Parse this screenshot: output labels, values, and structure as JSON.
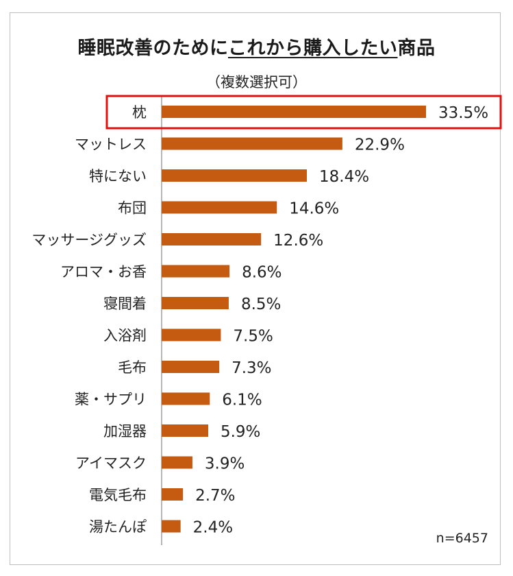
{
  "title_main": "睡眠改善のために",
  "title_underlined": "これから購入したい",
  "title_tail": "商品",
  "subtitle": "（複数選択可）",
  "note": "n=6457",
  "colors": {
    "bar": "#c55a11",
    "highlight": "#e01010",
    "axis": "#9e9e9e"
  },
  "chart_data": {
    "type": "bar",
    "orientation": "horizontal",
    "categories": [
      "枕",
      "マットレス",
      "特にない",
      "布団",
      "マッサージグッズ",
      "アロマ・お香",
      "寝間着",
      "入浴剤",
      "毛布",
      "薬・サプリ",
      "加湿器",
      "アイマスク",
      "電気毛布",
      "湯たんぽ"
    ],
    "values": [
      33.5,
      22.9,
      18.4,
      14.6,
      12.6,
      8.6,
      8.5,
      7.5,
      7.3,
      6.1,
      5.9,
      3.9,
      2.7,
      2.4
    ],
    "value_labels": [
      "33.5%",
      "22.9%",
      "18.4%",
      "14.6%",
      "12.6%",
      "8.6%",
      "8.5%",
      "7.5%",
      "7.3%",
      "6.1%",
      "5.9%",
      "3.9%",
      "2.7%",
      "2.4%"
    ],
    "unit": "%",
    "highlighted_category": "枕",
    "grid": false
  }
}
